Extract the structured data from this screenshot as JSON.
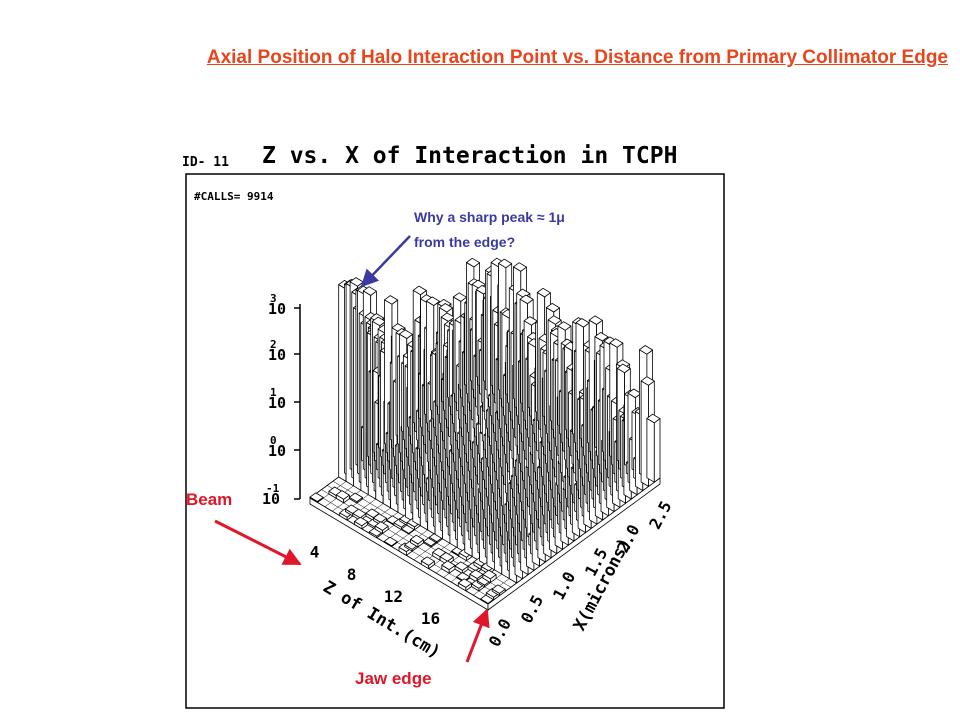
{
  "slide": {
    "title": "Axial Position of Halo Interaction Point vs. Distance from Primary Collimator Edge"
  },
  "figure": {
    "id_label": "ID- 11",
    "calls_label": "#CALLS= 9914",
    "question_line1": "Why a sharp peak ≈ 1μ",
    "question_line2": "from the edge?",
    "beam_label": "Beam",
    "jaw_label": "Jaw edge"
  },
  "colors": {
    "title": "#e8451c",
    "annotation_text": "#3a3aa0",
    "annotation_arrow": "#3a3aa0",
    "beam_arrow": "#e0162b",
    "label_red": "#e0162b"
  },
  "chart_data": {
    "type": "lego-3d-histogram",
    "title": "Z vs. X of Interaction in TCPH",
    "xlabel": "Z of Int.(cm)",
    "ylabel": "X(microns)",
    "zlabel": "",
    "z_scale": "log",
    "x_ticks": [
      "4",
      "8",
      "12",
      "16"
    ],
    "y_ticks": [
      "0.0",
      "0.5",
      "1.0",
      "1.5",
      "2.0",
      "2.5"
    ],
    "z_ticks": [
      "10^3",
      "10^2",
      "10^1",
      "10^0",
      "10^-1"
    ],
    "annotation": "sharp peak near X ≈ 1 μ from the edge"
  }
}
